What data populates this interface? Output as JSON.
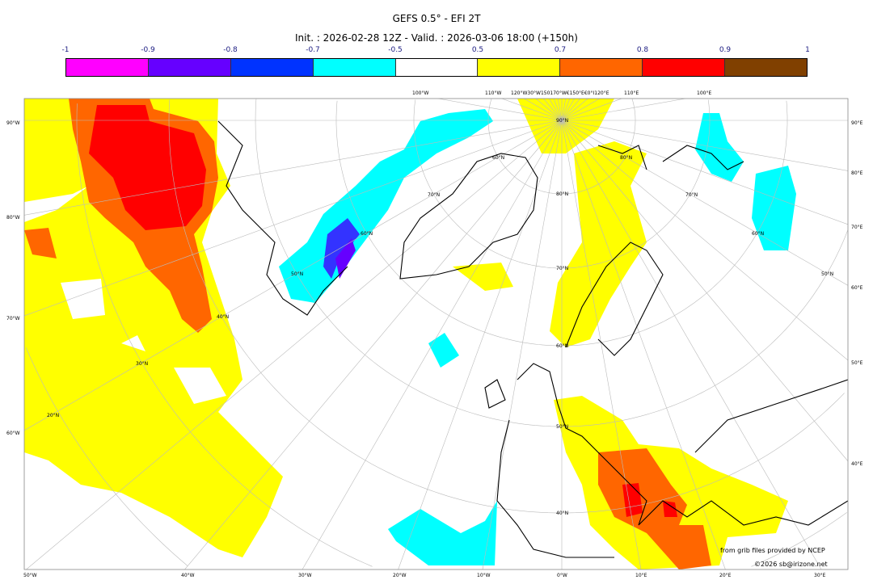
{
  "header": {
    "title": "GEFS 0.5° - EFI 2T",
    "subtitle": "Init. : 2026-02-28 12Z - Valid. : 2026-03-06 18:00 (+150h)"
  },
  "colorbar": {
    "ticks": [
      "-1",
      "-0.9",
      "-0.8",
      "-0.7",
      "-0.5",
      "0.5",
      "0.7",
      "0.8",
      "0.9",
      "1"
    ],
    "colors": [
      "#ff00ff",
      "#6600ff",
      "#0033ff",
      "#00ffff",
      "#ffffff",
      "#ffff00",
      "#ff6600",
      "#ff0000",
      "#804000"
    ]
  },
  "axes": {
    "left": [
      "90°W",
      "80°W",
      "70°W",
      "60°W"
    ],
    "right": [
      "90°E",
      "80°E",
      "70°E",
      "60°E",
      "50°E",
      "40°E"
    ],
    "bottom": [
      "50°W",
      "40°W",
      "30°W",
      "20°W",
      "10°W",
      "0°W",
      "10°E",
      "20°E",
      "30°E"
    ],
    "top": [
      "100°W",
      "110°W",
      "120°W30°W150170°W€150°E€0°I120°E",
      "110°E",
      "100°E"
    ]
  },
  "lat_labels": [
    "90°N",
    "80°N",
    "80°N",
    "70°N",
    "60°N",
    "50°N",
    "40°N",
    "60°N",
    "70°N",
    "60°N",
    "50°N",
    "40°N",
    "30°N",
    "20°N",
    "70°N",
    "60°N",
    "50°N"
  ],
  "footer": {
    "source": "from grib files provided by NCEP",
    "copyright": "©2026 sb@irizone.net"
  }
}
